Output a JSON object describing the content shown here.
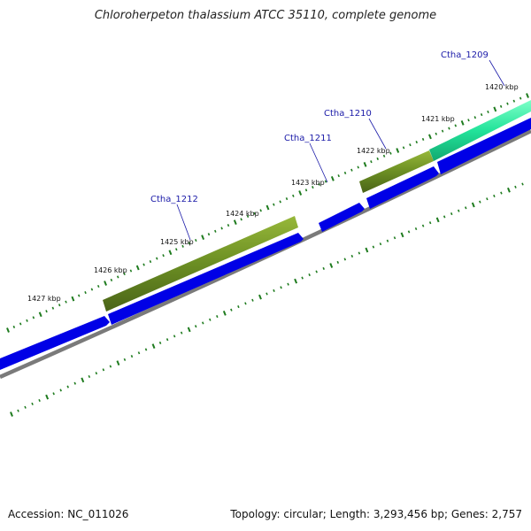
{
  "title": "Chloroherpeton thalassium ATCC 35110, complete genome",
  "accession": "Accession: NC_011026",
  "summary": "Topology: circular; Length: 3,293,456 bp; Genes: 2,757",
  "kbp_labels": [
    "1420 kbp",
    "1421 kbp",
    "1422 kbp",
    "1423 kbp",
    "1424 kbp",
    "1425 kbp",
    "1426 kbp",
    "1427 kbp"
  ],
  "gene_labels": [
    "Ctha_1209",
    "Ctha_1210",
    "Ctha_1211",
    "Ctha_1212"
  ],
  "colors": {
    "gene_blue": "#0000e6",
    "gene_olive": "#6b8e23",
    "gene_teal": "#22e39a",
    "backbone": "#7a7a7a",
    "tick_green": "#1e7b1e",
    "label_blue": "#1a1aa8"
  }
}
